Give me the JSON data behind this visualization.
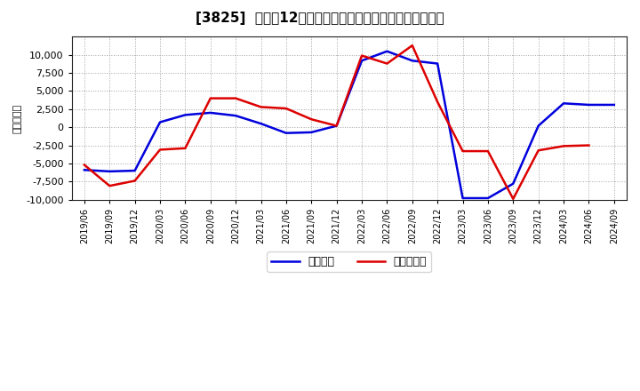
{
  "title": "[3825]  利益だ12か月移動合計の対前年同期増減額の推移",
  "ylabel": "（百万円）",
  "background_color": "#ffffff",
  "plot_bg_color": "#ffffff",
  "grid_color": "#999999",
  "ylim": [
    -10000,
    12500
  ],
  "yticks": [
    -10000,
    -7500,
    -5000,
    -2500,
    0,
    2500,
    5000,
    7500,
    10000
  ],
  "legend_labels": [
    "経常利益",
    "当期純利益"
  ],
  "line_colors": [
    "#0000dd",
    "#dd0000"
  ],
  "x_labels": [
    "2019/06",
    "2019/09",
    "2019/12",
    "2020/03",
    "2020/06",
    "2020/09",
    "2020/12",
    "2021/03",
    "2021/06",
    "2021/09",
    "2021/12",
    "2022/03",
    "2022/06",
    "2022/09",
    "2022/12",
    "2023/03",
    "2023/06",
    "2023/09",
    "2023/12",
    "2024/03",
    "2024/06",
    "2024/09"
  ],
  "ordinary_profit": [
    -5900,
    -6100,
    -6000,
    700,
    1700,
    2000,
    1600,
    500,
    -800,
    -700,
    200,
    9200,
    10500,
    9200,
    8800,
    -9800,
    -9800,
    -7800,
    200,
    3300,
    3100,
    3100
  ],
  "net_profit": [
    -5200,
    -8100,
    -7400,
    -3100,
    -2900,
    4000,
    4000,
    2800,
    2600,
    1100,
    200,
    9900,
    8800,
    11300,
    3500,
    -3300,
    -3300,
    -9900,
    -3200,
    -2600,
    -2500,
    null
  ]
}
